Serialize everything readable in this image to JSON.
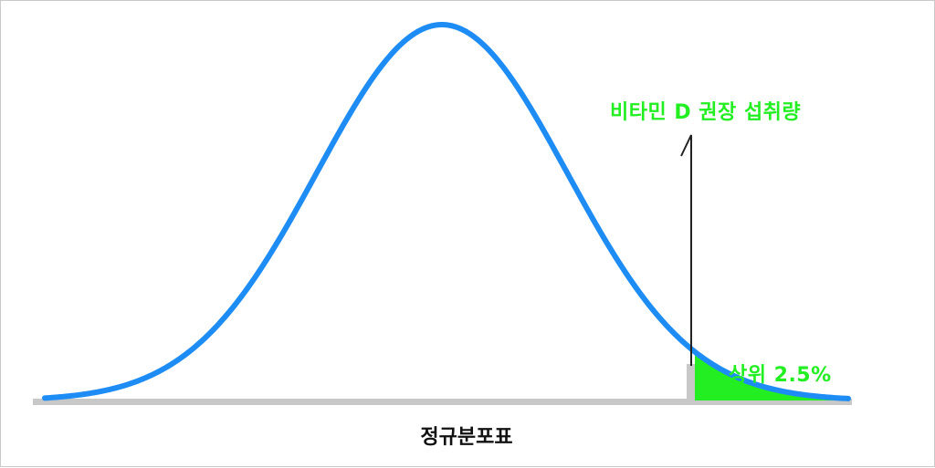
{
  "diagram": {
    "axis_label": "정규분포표",
    "threshold_label": "비타민 D 권장 섭취량",
    "tail_label": "상위 2.5%",
    "colors": {
      "curve": "#1e8cf5",
      "tail_fill": "#22ee22",
      "label_green": "#22ee22",
      "baseline": "#c8c8c8",
      "threshold_line": "#222222"
    }
  }
}
